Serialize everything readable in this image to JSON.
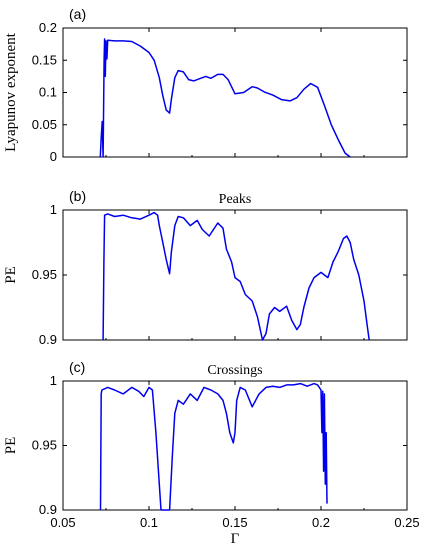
{
  "chart_data": [
    {
      "type": "line",
      "panel_label": "(a)",
      "title": "",
      "xlabel": "",
      "ylabel": "Lyapunov exponent",
      "xlim": [
        0.05,
        0.25
      ],
      "ylim": [
        0,
        0.2
      ],
      "xticks": [],
      "yticks": [
        "0",
        "0.05",
        "0.1",
        "0.15",
        "0.2"
      ],
      "grid": false,
      "series": [
        {
          "color": "#0000ee",
          "x": [
            0.0717,
            0.0722,
            0.0728,
            0.0733,
            0.0739,
            0.0742,
            0.0746,
            0.075,
            0.0755,
            0.076,
            0.08,
            0.085,
            0.09,
            0.095,
            0.1,
            0.103,
            0.106,
            0.108,
            0.11,
            0.112,
            0.113,
            0.115,
            0.117,
            0.12,
            0.123,
            0.126,
            0.13,
            0.133,
            0.136,
            0.14,
            0.143,
            0.146,
            0.15,
            0.155,
            0.16,
            0.163,
            0.167,
            0.172,
            0.177,
            0.182,
            0.186,
            0.19,
            0.194,
            0.198,
            0.202,
            0.206,
            0.21,
            0.214,
            0.217
          ],
          "values": [
            0,
            0.03,
            0.055,
            0,
            0.15,
            0.183,
            0.125,
            0.18,
            0.152,
            0.181,
            0.18,
            0.18,
            0.179,
            0.172,
            0.162,
            0.15,
            0.123,
            0.095,
            0.073,
            0.068,
            0.09,
            0.123,
            0.134,
            0.132,
            0.12,
            0.118,
            0.122,
            0.125,
            0.122,
            0.128,
            0.128,
            0.12,
            0.098,
            0.1,
            0.109,
            0.107,
            0.101,
            0.096,
            0.089,
            0.087,
            0.092,
            0.105,
            0.114,
            0.108,
            0.08,
            0.05,
            0.027,
            0.006,
            0
          ]
        }
      ]
    },
    {
      "type": "line",
      "panel_label": "(b)",
      "title": "Peaks",
      "xlabel": "",
      "ylabel": "PE",
      "xlim": [
        0.05,
        0.25
      ],
      "ylim": [
        0.9,
        1
      ],
      "xticks": [],
      "yticks": [
        "0.9",
        "0.95",
        "1"
      ],
      "grid": false,
      "series": [
        {
          "color": "#0000ee",
          "x": [
            0.0733,
            0.0738,
            0.0742,
            0.076,
            0.08,
            0.085,
            0.09,
            0.095,
            0.1,
            0.103,
            0.105,
            0.106,
            0.108,
            0.11,
            0.112,
            0.113,
            0.115,
            0.117,
            0.12,
            0.124,
            0.128,
            0.131,
            0.135,
            0.14,
            0.143,
            0.145,
            0.148,
            0.15,
            0.153,
            0.156,
            0.16,
            0.163,
            0.166,
            0.168,
            0.17,
            0.173,
            0.176,
            0.18,
            0.183,
            0.186,
            0.188,
            0.19,
            0.193,
            0.196,
            0.2,
            0.204,
            0.207,
            0.21,
            0.213,
            0.215,
            0.217,
            0.219,
            0.222,
            0.225,
            0.227,
            0.228
          ],
          "values": [
            0.9,
            0.96,
            0.996,
            0.997,
            0.995,
            0.996,
            0.994,
            0.993,
            0.996,
            0.998,
            0.996,
            0.988,
            0.975,
            0.962,
            0.951,
            0.968,
            0.988,
            0.995,
            0.994,
            0.988,
            0.992,
            0.985,
            0.98,
            0.99,
            0.986,
            0.97,
            0.96,
            0.948,
            0.945,
            0.935,
            0.93,
            0.918,
            0.9,
            0.905,
            0.92,
            0.925,
            0.922,
            0.926,
            0.915,
            0.908,
            0.912,
            0.925,
            0.94,
            0.948,
            0.952,
            0.948,
            0.96,
            0.968,
            0.978,
            0.98,
            0.975,
            0.962,
            0.95,
            0.93,
            0.91,
            0.9
          ]
        }
      ]
    },
    {
      "type": "line",
      "panel_label": "(c)",
      "title": "Crossings",
      "xlabel": "Γ",
      "ylabel": "PE",
      "xlim": [
        0.05,
        0.25
      ],
      "ylim": [
        0.9,
        1
      ],
      "xticks": [
        "0.05",
        "0.1",
        "0.15",
        "0.2",
        "0.25"
      ],
      "yticks": [
        "0.9",
        "0.95",
        "1"
      ],
      "grid": false,
      "series": [
        {
          "color": "#0000ee",
          "x": [
            0.0718,
            0.0722,
            0.0726,
            0.076,
            0.08,
            0.085,
            0.09,
            0.094,
            0.097,
            0.1,
            0.102,
            0.104,
            0.106,
            0.107,
            0.108,
            0.11,
            0.112,
            0.1135,
            0.115,
            0.117,
            0.12,
            0.124,
            0.128,
            0.132,
            0.136,
            0.14,
            0.143,
            0.145,
            0.147,
            0.149,
            0.15,
            0.151,
            0.153,
            0.156,
            0.16,
            0.164,
            0.168,
            0.172,
            0.176,
            0.18,
            0.184,
            0.188,
            0.192,
            0.196,
            0.198,
            0.2,
            0.2005,
            0.201,
            0.2015,
            0.202,
            0.2025,
            0.203,
            0.2035
          ],
          "values": [
            0.9,
            0.99,
            0.993,
            0.995,
            0.993,
            0.99,
            0.995,
            0.992,
            0.988,
            0.995,
            0.993,
            0.96,
            0.92,
            0.9,
            0.9,
            0.9,
            0.9,
            0.94,
            0.975,
            0.985,
            0.982,
            0.99,
            0.985,
            0.995,
            0.993,
            0.99,
            0.985,
            0.975,
            0.96,
            0.952,
            0.96,
            0.985,
            0.995,
            0.993,
            0.98,
            0.99,
            0.995,
            0.996,
            0.995,
            0.997,
            0.997,
            0.998,
            0.996,
            0.998,
            0.997,
            0.993,
            0.96,
            0.992,
            0.93,
            0.99,
            0.92,
            0.96,
            0.905
          ]
        }
      ]
    }
  ]
}
